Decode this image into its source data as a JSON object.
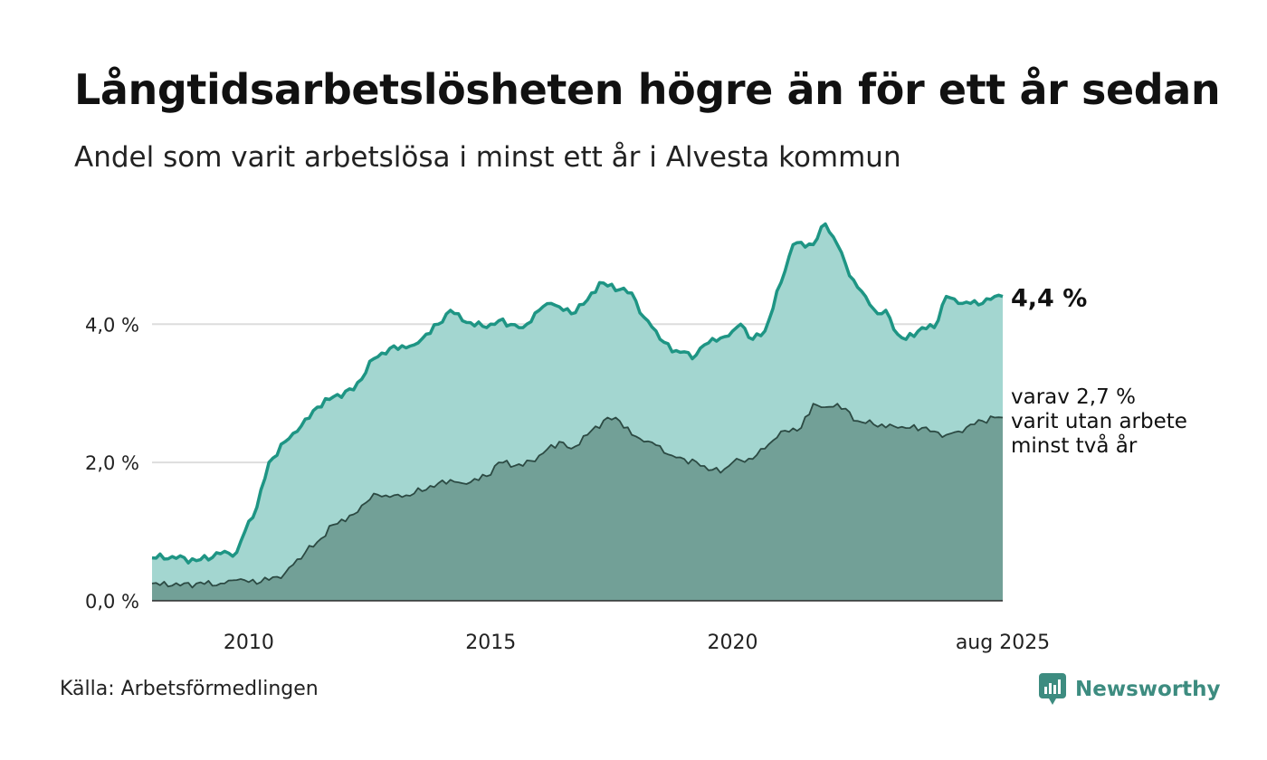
{
  "title": "Långtidsarbetslösheten högre än för ett år sedan",
  "subtitle": "Andel som varit arbetslösa i minst ett år i Alvesta kommun",
  "source": "Källa: Arbetsförmedlingen",
  "brand": {
    "name": "Newsworthy",
    "icon": "newsworthy-logo-icon",
    "color": "#3d8c80"
  },
  "colors": {
    "total_line": "#1e9584",
    "total_area": "#a3d6d0",
    "longterm_line": "#2c4a43",
    "longterm_area": "#72a097",
    "grid": "#dddddd"
  },
  "chart_data": {
    "type": "area",
    "title": "Långtidsarbetslösheten högre än för ett år sedan",
    "subtitle": "Andel som varit arbetslösa i minst ett år i Alvesta kommun",
    "x_ticks": [
      "2010",
      "2015",
      "2020",
      "aug 2025"
    ],
    "y_ticks": [
      "0,0 %",
      "2,0 %",
      "4,0 %"
    ],
    "ylim": [
      0,
      5.6
    ],
    "xlim": [
      "2008-01",
      "2025-08"
    ],
    "grid": true,
    "series": [
      {
        "key": "total",
        "end_label": "4,4 %",
        "points": [
          [
            "2008-01",
            0.62
          ],
          [
            "2008-06",
            0.64
          ],
          [
            "2008-12",
            0.58
          ],
          [
            "2009-06",
            0.68
          ],
          [
            "2009-10",
            0.7
          ],
          [
            "2010-01",
            1.15
          ],
          [
            "2010-03",
            1.35
          ],
          [
            "2010-06",
            2.0
          ],
          [
            "2010-10",
            2.3
          ],
          [
            "2011-01",
            2.45
          ],
          [
            "2011-06",
            2.8
          ],
          [
            "2011-10",
            2.95
          ],
          [
            "2012-03",
            3.05
          ],
          [
            "2012-08",
            3.5
          ],
          [
            "2012-12",
            3.65
          ],
          [
            "2013-06",
            3.7
          ],
          [
            "2013-12",
            4.0
          ],
          [
            "2014-03",
            4.2
          ],
          [
            "2014-06",
            4.05
          ],
          [
            "2014-12",
            3.95
          ],
          [
            "2015-03",
            4.05
          ],
          [
            "2015-09",
            3.95
          ],
          [
            "2016-01",
            4.2
          ],
          [
            "2016-04",
            4.3
          ],
          [
            "2016-09",
            4.15
          ],
          [
            "2017-01",
            4.35
          ],
          [
            "2017-04",
            4.6
          ],
          [
            "2017-09",
            4.5
          ],
          [
            "2017-12",
            4.45
          ],
          [
            "2018-03",
            4.1
          ],
          [
            "2018-06",
            3.9
          ],
          [
            "2018-10",
            3.6
          ],
          [
            "2019-01",
            3.6
          ],
          [
            "2019-03",
            3.5
          ],
          [
            "2019-06",
            3.7
          ],
          [
            "2019-10",
            3.8
          ],
          [
            "2020-01",
            3.9
          ],
          [
            "2020-03",
            4.0
          ],
          [
            "2020-06",
            3.78
          ],
          [
            "2020-09",
            3.9
          ],
          [
            "2021-01",
            4.6
          ],
          [
            "2021-04",
            5.15
          ],
          [
            "2021-09",
            5.15
          ],
          [
            "2021-12",
            5.45
          ],
          [
            "2022-03",
            5.15
          ],
          [
            "2022-06",
            4.7
          ],
          [
            "2022-10",
            4.4
          ],
          [
            "2023-01",
            4.15
          ],
          [
            "2023-03",
            4.2
          ],
          [
            "2023-06",
            3.85
          ],
          [
            "2023-08",
            3.78
          ],
          [
            "2023-12",
            3.95
          ],
          [
            "2024-03",
            3.95
          ],
          [
            "2024-06",
            4.4
          ],
          [
            "2024-09",
            4.3
          ],
          [
            "2024-12",
            4.3
          ],
          [
            "2025-03",
            4.3
          ],
          [
            "2025-06",
            4.4
          ],
          [
            "2025-08",
            4.4
          ]
        ]
      },
      {
        "key": "longterm",
        "end_label_lines": [
          "varav 2,7 %",
          "varit utan arbete",
          "minst två år"
        ],
        "points": [
          [
            "2008-01",
            0.25
          ],
          [
            "2008-06",
            0.22
          ],
          [
            "2008-12",
            0.25
          ],
          [
            "2009-06",
            0.25
          ],
          [
            "2009-10",
            0.3
          ],
          [
            "2010-01",
            0.27
          ],
          [
            "2010-06",
            0.3
          ],
          [
            "2010-10",
            0.4
          ],
          [
            "2011-01",
            0.6
          ],
          [
            "2011-06",
            0.85
          ],
          [
            "2011-10",
            1.1
          ],
          [
            "2012-03",
            1.25
          ],
          [
            "2012-08",
            1.55
          ],
          [
            "2012-12",
            1.5
          ],
          [
            "2013-03",
            1.5
          ],
          [
            "2013-06",
            1.55
          ],
          [
            "2013-12",
            1.7
          ],
          [
            "2014-03",
            1.75
          ],
          [
            "2014-06",
            1.7
          ],
          [
            "2014-12",
            1.8
          ],
          [
            "2015-03",
            2.0
          ],
          [
            "2015-09",
            1.95
          ],
          [
            "2016-01",
            2.1
          ],
          [
            "2016-06",
            2.3
          ],
          [
            "2016-09",
            2.2
          ],
          [
            "2017-01",
            2.4
          ],
          [
            "2017-06",
            2.65
          ],
          [
            "2017-09",
            2.6
          ],
          [
            "2017-12",
            2.4
          ],
          [
            "2018-03",
            2.3
          ],
          [
            "2018-06",
            2.25
          ],
          [
            "2018-10",
            2.1
          ],
          [
            "2019-01",
            2.05
          ],
          [
            "2019-06",
            1.95
          ],
          [
            "2019-10",
            1.85
          ],
          [
            "2020-01",
            2.0
          ],
          [
            "2020-06",
            2.05
          ],
          [
            "2020-09",
            2.2
          ],
          [
            "2021-01",
            2.45
          ],
          [
            "2021-06",
            2.5
          ],
          [
            "2021-09",
            2.85
          ],
          [
            "2021-12",
            2.8
          ],
          [
            "2022-03",
            2.85
          ],
          [
            "2022-08",
            2.6
          ],
          [
            "2022-12",
            2.55
          ],
          [
            "2023-06",
            2.5
          ],
          [
            "2023-12",
            2.5
          ],
          [
            "2024-03",
            2.45
          ],
          [
            "2024-06",
            2.4
          ],
          [
            "2024-09",
            2.45
          ],
          [
            "2024-12",
            2.55
          ],
          [
            "2025-03",
            2.6
          ],
          [
            "2025-06",
            2.65
          ],
          [
            "2025-08",
            2.65
          ]
        ]
      }
    ]
  }
}
